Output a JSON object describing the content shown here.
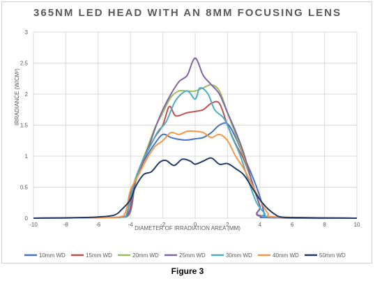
{
  "caption": "Figure 3",
  "chart_data": {
    "type": "line",
    "title": "365NM LED HEAD WITH AN 8MM FOCUSING LENS",
    "xlabel": "DIAMETER OF IRRADIATION AREA (MM)",
    "ylabel": "IRRADIANCE (W/CM²)",
    "xlim": [
      -10,
      10
    ],
    "ylim": [
      0,
      3
    ],
    "xticks": [
      "-10",
      "-8",
      "-6",
      "-4",
      "-2",
      "0",
      "2",
      "4",
      "6",
      "8",
      "10"
    ],
    "yticks": [
      "0",
      "0.5",
      "1",
      "1.5",
      "2",
      "2.5",
      "3"
    ],
    "grid": true,
    "legend_position": "bottom",
    "series": [
      {
        "name": "10mm WD",
        "color": "#4472c4",
        "points": [
          [
            -10,
            0
          ],
          [
            -6,
            0.01
          ],
          [
            -4.5,
            0.02
          ],
          [
            -4.2,
            0.06
          ],
          [
            -4,
            0.4
          ],
          [
            -3.5,
            0.75
          ],
          [
            -3,
            1.0
          ],
          [
            -2.5,
            1.2
          ],
          [
            -2,
            1.35
          ],
          [
            -1.5,
            1.3
          ],
          [
            -1,
            1.27
          ],
          [
            -0.5,
            1.26
          ],
          [
            0,
            1.28
          ],
          [
            0.5,
            1.3
          ],
          [
            1,
            1.38
          ],
          [
            1.5,
            1.5
          ],
          [
            2,
            1.52
          ],
          [
            2.5,
            1.3
          ],
          [
            3,
            1.0
          ],
          [
            3.5,
            0.7
          ],
          [
            4,
            0.35
          ],
          [
            4.3,
            0.05
          ],
          [
            4.5,
            0.01
          ],
          [
            10,
            0
          ]
        ]
      },
      {
        "name": "15mm WD",
        "color": "#c0504d",
        "points": [
          [
            -10,
            0
          ],
          [
            -6,
            0.01
          ],
          [
            -4.5,
            0.02
          ],
          [
            -4.1,
            0.08
          ],
          [
            -3.8,
            0.5
          ],
          [
            -3.3,
            0.85
          ],
          [
            -3,
            1.05
          ],
          [
            -2.5,
            1.3
          ],
          [
            -2,
            1.5
          ],
          [
            -1.6,
            1.8
          ],
          [
            -1.2,
            1.65
          ],
          [
            -0.5,
            1.7
          ],
          [
            0,
            1.72
          ],
          [
            0.5,
            1.75
          ],
          [
            1,
            1.85
          ],
          [
            1.5,
            1.85
          ],
          [
            2,
            1.5
          ],
          [
            2.5,
            1.2
          ],
          [
            3,
            0.95
          ],
          [
            3.5,
            0.6
          ],
          [
            4,
            0.2
          ],
          [
            4.3,
            0.03
          ],
          [
            10,
            0
          ]
        ]
      },
      {
        "name": "20mm WD",
        "color": "#9bbb59",
        "points": [
          [
            -10,
            0
          ],
          [
            -6,
            0.01
          ],
          [
            -4.5,
            0.02
          ],
          [
            -4,
            0.1
          ],
          [
            -3.7,
            0.55
          ],
          [
            -3.3,
            0.9
          ],
          [
            -3,
            1.1
          ],
          [
            -2.5,
            1.45
          ],
          [
            -2,
            1.7
          ],
          [
            -1.5,
            1.95
          ],
          [
            -1,
            2.05
          ],
          [
            -0.5,
            2.05
          ],
          [
            0,
            2.05
          ],
          [
            0.5,
            2.1
          ],
          [
            1,
            2.15
          ],
          [
            1.5,
            2.05
          ],
          [
            2,
            1.7
          ],
          [
            2.5,
            1.35
          ],
          [
            3,
            1.0
          ],
          [
            3.5,
            0.6
          ],
          [
            4,
            0.2
          ],
          [
            4.3,
            0.02
          ],
          [
            10,
            0
          ]
        ]
      },
      {
        "name": "25mm WD",
        "color": "#8064a2",
        "points": [
          [
            -10,
            0
          ],
          [
            -6,
            0.01
          ],
          [
            -4.5,
            0.02
          ],
          [
            -4,
            0.12
          ],
          [
            -3.7,
            0.6
          ],
          [
            -3.2,
            0.95
          ],
          [
            -2.8,
            1.2
          ],
          [
            -2.4,
            1.5
          ],
          [
            -2,
            1.75
          ],
          [
            -1.5,
            2.0
          ],
          [
            -1,
            2.2
          ],
          [
            -0.5,
            2.3
          ],
          [
            -0.2,
            2.5
          ],
          [
            0,
            2.58
          ],
          [
            0.2,
            2.5
          ],
          [
            0.5,
            2.3
          ],
          [
            1,
            2.15
          ],
          [
            1.5,
            2.0
          ],
          [
            2,
            1.7
          ],
          [
            2.5,
            1.4
          ],
          [
            3,
            1.05
          ],
          [
            3.5,
            0.6
          ],
          [
            4,
            0.2
          ],
          [
            4.3,
            0.02
          ],
          [
            10,
            0
          ]
        ]
      },
      {
        "name": "30mm WD",
        "color": "#4bacc6",
        "points": [
          [
            -10,
            0
          ],
          [
            -6,
            0.01
          ],
          [
            -4.5,
            0.02
          ],
          [
            -4.2,
            0.1
          ],
          [
            -3.8,
            0.55
          ],
          [
            -3.3,
            0.9
          ],
          [
            -2.8,
            1.15
          ],
          [
            -2.3,
            1.4
          ],
          [
            -1.8,
            1.55
          ],
          [
            -1.2,
            1.9
          ],
          [
            -0.5,
            2.05
          ],
          [
            0,
            1.92
          ],
          [
            0.3,
            2.1
          ],
          [
            0.8,
            2.0
          ],
          [
            1.2,
            1.75
          ],
          [
            1.8,
            1.6
          ],
          [
            2.3,
            1.3
          ],
          [
            2.8,
            1.0
          ],
          [
            3.3,
            0.6
          ],
          [
            3.8,
            0.25
          ],
          [
            4.3,
            0.08
          ],
          [
            4.6,
            0.02
          ],
          [
            10,
            0
          ]
        ]
      },
      {
        "name": "40mm WD",
        "color": "#f79646",
        "points": [
          [
            -10,
            0
          ],
          [
            -6,
            0.01
          ],
          [
            -4.7,
            0.02
          ],
          [
            -4.3,
            0.1
          ],
          [
            -4,
            0.45
          ],
          [
            -3.5,
            0.7
          ],
          [
            -3,
            0.95
          ],
          [
            -2.5,
            1.15
          ],
          [
            -2,
            1.25
          ],
          [
            -1.5,
            1.38
          ],
          [
            -1,
            1.35
          ],
          [
            -0.5,
            1.4
          ],
          [
            0,
            1.4
          ],
          [
            0.5,
            1.38
          ],
          [
            1,
            1.3
          ],
          [
            1.5,
            1.35
          ],
          [
            2,
            1.25
          ],
          [
            2.5,
            1.0
          ],
          [
            3,
            0.8
          ],
          [
            3.5,
            0.55
          ],
          [
            4,
            0.3
          ],
          [
            4.5,
            0.08
          ],
          [
            5,
            0.02
          ],
          [
            10,
            0
          ]
        ]
      },
      {
        "name": "50mm WD",
        "color": "#1f3864",
        "points": [
          [
            -10,
            0
          ],
          [
            -7,
            0.01
          ],
          [
            -6,
            0.02
          ],
          [
            -5,
            0.05
          ],
          [
            -4.5,
            0.15
          ],
          [
            -4,
            0.3
          ],
          [
            -3.7,
            0.5
          ],
          [
            -3.2,
            0.7
          ],
          [
            -2.7,
            0.75
          ],
          [
            -2.2,
            0.9
          ],
          [
            -1.8,
            0.93
          ],
          [
            -1.3,
            0.85
          ],
          [
            -0.8,
            0.95
          ],
          [
            -0.3,
            0.92
          ],
          [
            0,
            0.87
          ],
          [
            0.5,
            0.92
          ],
          [
            1,
            0.97
          ],
          [
            1.5,
            0.87
          ],
          [
            2,
            0.88
          ],
          [
            2.5,
            0.8
          ],
          [
            3,
            0.7
          ],
          [
            3.5,
            0.5
          ],
          [
            4,
            0.3
          ],
          [
            4.5,
            0.15
          ],
          [
            5,
            0.05
          ],
          [
            5.3,
            0.02
          ],
          [
            6,
            0.01
          ],
          [
            10,
            0
          ]
        ]
      }
    ]
  }
}
